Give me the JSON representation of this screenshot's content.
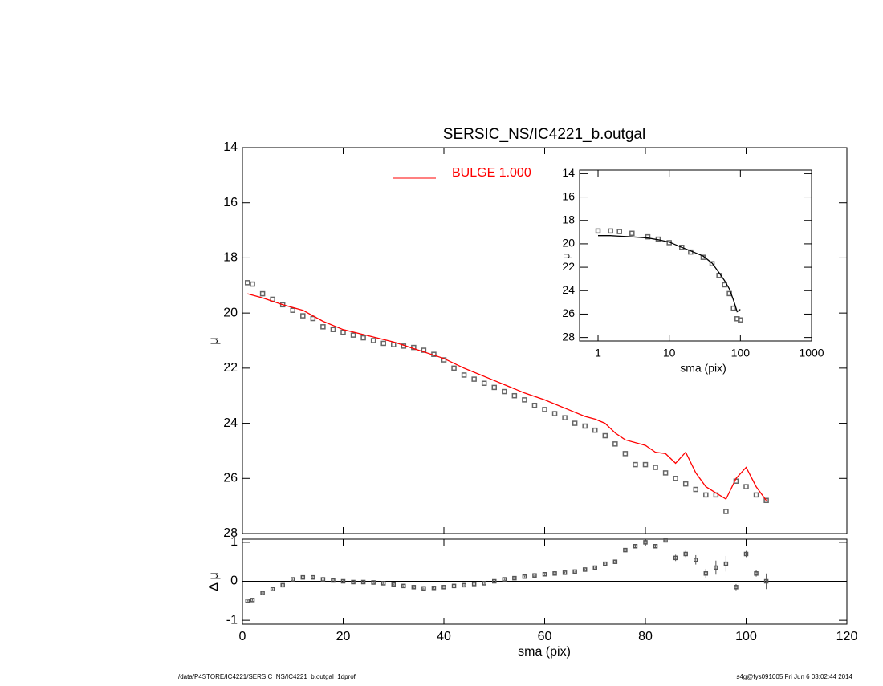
{
  "chart_data": [
    {
      "type": "scatter",
      "title": "SERSIC_NS/IC4221_b.outgal",
      "y_label": "μ",
      "xlim": [
        0,
        120
      ],
      "xticks": [
        0,
        20,
        40,
        60,
        80,
        100,
        120
      ],
      "ylim": [
        28,
        14
      ],
      "yticks": [
        14,
        16,
        18,
        20,
        22,
        24,
        26,
        28
      ],
      "series": [
        {
          "type": "scatter",
          "color": "#666666",
          "x": [
            1,
            2,
            4,
            6,
            8,
            10,
            12,
            14,
            16,
            18,
            20,
            22,
            24,
            26,
            28,
            30,
            32,
            34,
            36,
            38,
            40,
            42,
            44,
            46,
            48,
            50,
            52,
            54,
            56,
            58,
            60,
            62,
            64,
            66,
            68,
            70,
            72,
            74,
            76,
            78,
            80,
            82,
            84,
            86,
            88,
            90,
            92,
            94,
            96,
            98,
            100,
            102,
            104
          ],
          "values": [
            18.9,
            18.95,
            19.3,
            19.5,
            19.7,
            19.9,
            20.1,
            20.2,
            20.5,
            20.6,
            20.7,
            20.8,
            20.9,
            21.0,
            21.1,
            21.15,
            21.2,
            21.25,
            21.35,
            21.5,
            21.7,
            22.0,
            22.25,
            22.4,
            22.55,
            22.7,
            22.85,
            23.0,
            23.15,
            23.35,
            23.5,
            23.65,
            23.8,
            24.0,
            24.1,
            24.25,
            24.45,
            24.75,
            25.1,
            25.5,
            25.5,
            25.6,
            25.8,
            26.0,
            26.2,
            26.4,
            26.6,
            26.6,
            27.2,
            26.1,
            26.3,
            26.6,
            26.8
          ]
        },
        {
          "type": "line",
          "name": "BULGE  1.000",
          "color": "#ff0000",
          "x": [
            1,
            4,
            8,
            12,
            16,
            20,
            30,
            40,
            44,
            50,
            56,
            60,
            64,
            68,
            70,
            72,
            74,
            76,
            80,
            82,
            84,
            86,
            88,
            90,
            92,
            96,
            98,
            100,
            102,
            104
          ],
          "values": [
            19.3,
            19.45,
            19.7,
            19.9,
            20.3,
            20.6,
            21.05,
            21.65,
            22.0,
            22.45,
            22.9,
            23.15,
            23.45,
            23.75,
            23.85,
            24.0,
            24.35,
            24.6,
            24.8,
            25.05,
            25.1,
            25.45,
            25.05,
            25.8,
            26.3,
            26.75,
            26.0,
            25.6,
            26.3,
            26.8
          ]
        }
      ]
    },
    {
      "type": "errorbar",
      "x_label": "sma (pix)",
      "y_label": "Δ μ",
      "xlim": [
        0,
        120
      ],
      "xticks": [
        0,
        20,
        40,
        60,
        80,
        100,
        120
      ],
      "ylim": [
        -1.1,
        1.08
      ],
      "yticks": [
        -1,
        0,
        1
      ],
      "reference_line": 0,
      "series": [
        {
          "type": "errorbar",
          "color": "#555555",
          "x": [
            1,
            2,
            4,
            6,
            8,
            10,
            12,
            14,
            16,
            18,
            20,
            22,
            24,
            26,
            28,
            30,
            32,
            34,
            36,
            38,
            40,
            42,
            44,
            46,
            48,
            50,
            52,
            54,
            56,
            58,
            60,
            62,
            64,
            66,
            68,
            70,
            72,
            74,
            76,
            78,
            80,
            82,
            84,
            86,
            88,
            90,
            92,
            94,
            96,
            98,
            100,
            102,
            104
          ],
          "values": [
            -0.5,
            -0.48,
            -0.3,
            -0.2,
            -0.1,
            0.05,
            0.1,
            0.1,
            0.05,
            0.02,
            0.0,
            -0.02,
            -0.02,
            -0.03,
            -0.05,
            -0.08,
            -0.12,
            -0.15,
            -0.18,
            -0.17,
            -0.15,
            -0.12,
            -0.1,
            -0.07,
            -0.05,
            0.0,
            0.05,
            0.08,
            0.12,
            0.15,
            0.18,
            0.2,
            0.22,
            0.25,
            0.3,
            0.35,
            0.45,
            0.5,
            0.8,
            0.9,
            1.0,
            0.9,
            1.05,
            0.6,
            0.7,
            0.55,
            0.2,
            0.35,
            0.45,
            -0.15,
            0.7,
            0.2,
            0.0
          ],
          "errors": [
            0.02,
            0.02,
            0.02,
            0.02,
            0.02,
            0.02,
            0.02,
            0.02,
            0.02,
            0.02,
            0.02,
            0.02,
            0.02,
            0.02,
            0.02,
            0.02,
            0.02,
            0.02,
            0.02,
            0.02,
            0.02,
            0.02,
            0.02,
            0.02,
            0.02,
            0.02,
            0.02,
            0.02,
            0.02,
            0.02,
            0.02,
            0.02,
            0.02,
            0.02,
            0.02,
            0.02,
            0.02,
            0.02,
            0.05,
            0.05,
            0.03,
            0.05,
            0.05,
            0.08,
            0.08,
            0.12,
            0.12,
            0.18,
            0.2,
            0.08,
            0.08,
            0.08,
            0.2
          ]
        }
      ]
    },
    {
      "type": "scatter",
      "x_label": "sma (pix)",
      "y_label": "μ",
      "log_x": true,
      "xlim": [
        0.55,
        1000
      ],
      "xticks": [
        1,
        10,
        100,
        1000
      ],
      "ylim": [
        28.3,
        13.7
      ],
      "yticks": [
        14,
        16,
        18,
        20,
        22,
        24,
        26,
        28
      ],
      "series": [
        {
          "type": "scatter",
          "color": "#666666",
          "x": [
            1,
            1.5,
            2,
            3,
            5,
            7,
            10,
            15,
            20,
            30,
            40,
            50,
            60,
            70,
            80,
            90,
            100
          ],
          "values": [
            18.9,
            18.9,
            18.95,
            19.1,
            19.4,
            19.6,
            19.9,
            20.3,
            20.7,
            21.15,
            21.7,
            22.7,
            23.5,
            24.25,
            25.5,
            26.4,
            26.5
          ]
        },
        {
          "type": "line",
          "color": "#000000",
          "x": [
            1,
            1.5,
            2,
            3,
            5,
            7,
            10,
            15,
            20,
            30,
            40,
            50,
            60,
            70,
            80,
            90,
            100
          ],
          "values": [
            19.3,
            19.3,
            19.35,
            19.4,
            19.5,
            19.65,
            19.85,
            20.3,
            20.6,
            21.05,
            21.65,
            22.45,
            23.15,
            23.85,
            24.8,
            25.8,
            25.6
          ]
        }
      ]
    }
  ],
  "footer": {
    "left": "/data/P4STORE/IC4221/SERSIC_NS/IC4221_b.outgal_1dprof",
    "right": "s4g@fys091005  Fri Jun  6 03:02:44 2014"
  }
}
